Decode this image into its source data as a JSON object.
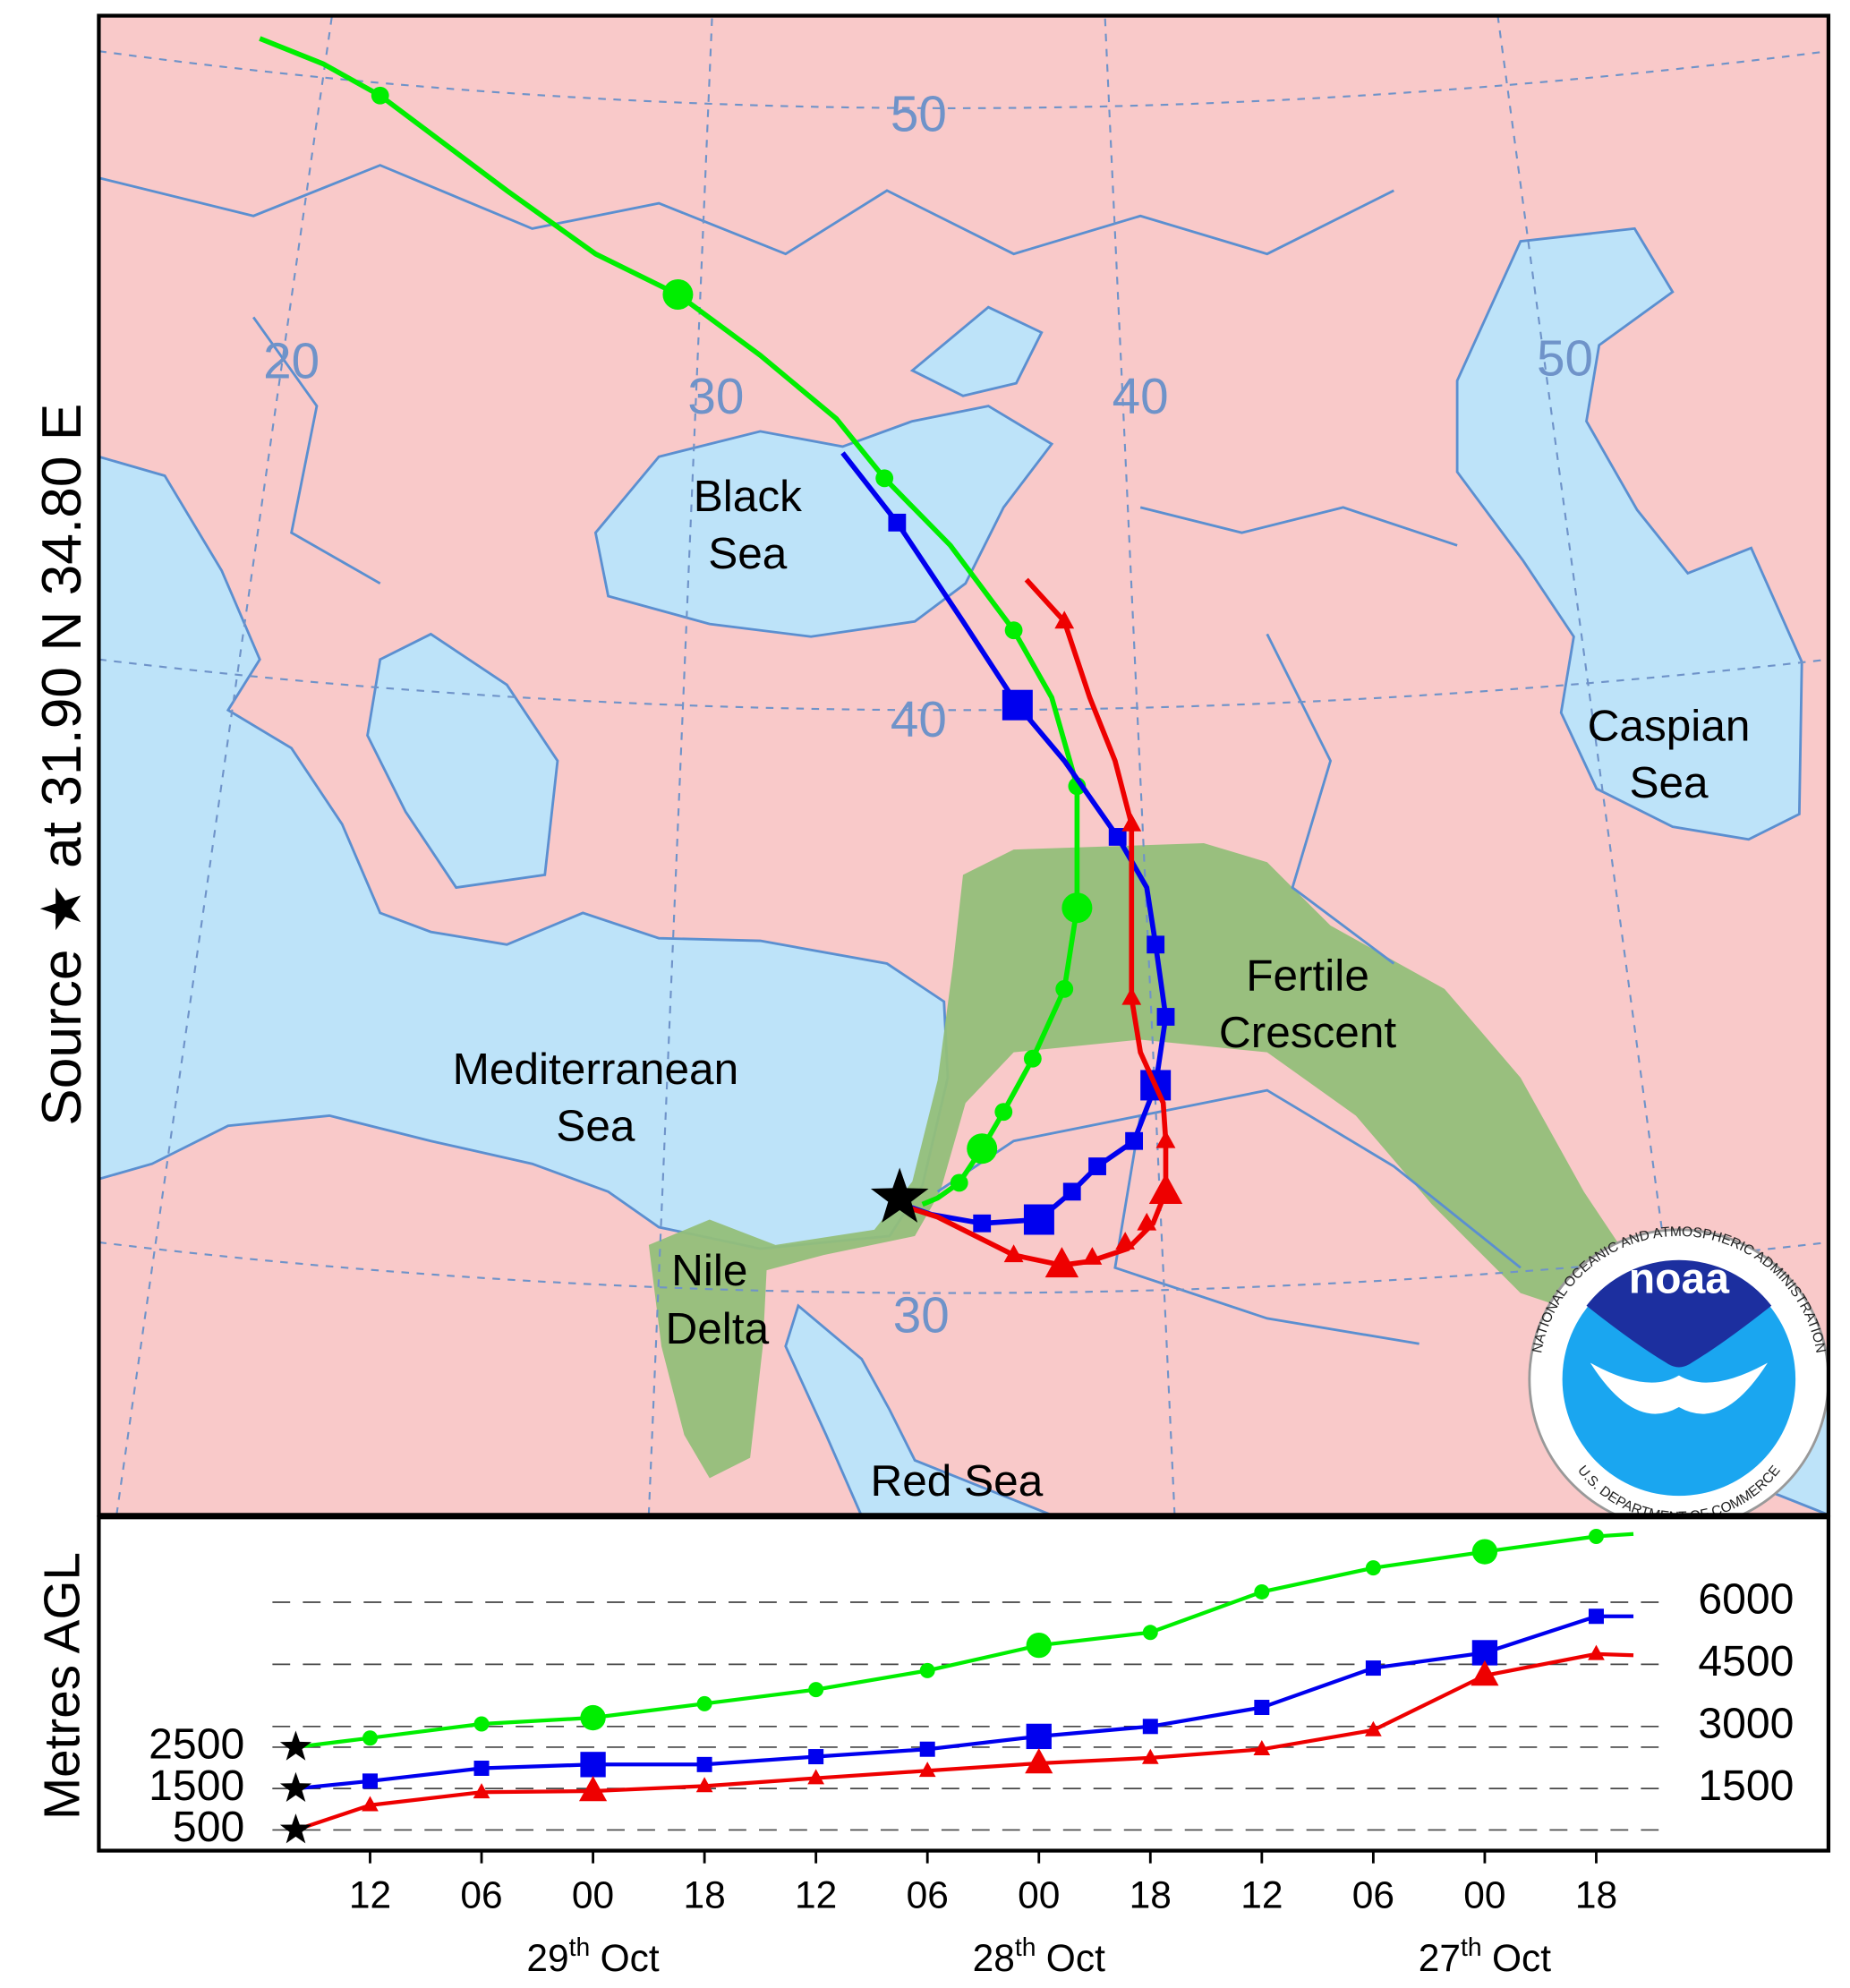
{
  "map": {
    "labels": {
      "black_sea": [
        "Black",
        "Sea"
      ],
      "mediterranean": [
        "Mediterranean",
        "Sea"
      ],
      "caspian": [
        "Caspian",
        "Sea"
      ],
      "fertile": [
        "Fertile",
        "Crescent"
      ],
      "nile": [
        "Nile",
        "Delta"
      ],
      "red_sea": "Red Sea"
    },
    "graticule_labels": [
      "50",
      "20",
      "30",
      "40",
      "50",
      "40",
      "30"
    ]
  },
  "source_label": "Source ★ at 31.90 N 34.80 E",
  "logo": {
    "name": "noaa",
    "ring_top": "NATIONAL OCEANIC AND ATMOSPHERIC ADMINISTRATION",
    "ring_bottom": "U.S. DEPARTMENT OF COMMERCE"
  },
  "chart_data": {
    "type": "line",
    "y_label": "Metres AGL",
    "x": [
      0,
      4,
      10,
      16,
      22,
      28,
      34,
      40,
      46,
      52,
      58,
      64,
      70,
      72
    ],
    "xlim": [
      -10.6,
      82.5
    ],
    "xticks": [
      {
        "value": 4,
        "label": "12"
      },
      {
        "value": 10,
        "label": "06"
      },
      {
        "value": 16,
        "label": "00"
      },
      {
        "value": 22,
        "label": "18"
      },
      {
        "value": 28,
        "label": "12"
      },
      {
        "value": 34,
        "label": "06"
      },
      {
        "value": 40,
        "label": "00"
      },
      {
        "value": 46,
        "label": "18"
      },
      {
        "value": 52,
        "label": "12"
      },
      {
        "value": 58,
        "label": "06"
      },
      {
        "value": 64,
        "label": "00"
      },
      {
        "value": 70,
        "label": "18"
      }
    ],
    "date_labels": [
      {
        "day": "29",
        "suffix": "th",
        "month": "Oct"
      },
      {
        "day": "28",
        "suffix": "th",
        "month": "Oct"
      },
      {
        "day": "27",
        "suffix": "th",
        "month": "Oct"
      }
    ],
    "ylim": [
      0,
      8050
    ],
    "yticks": [
      1500,
      3000,
      4500,
      6000
    ],
    "start_ticks": [
      500,
      1500,
      2500
    ],
    "grid": true,
    "series": [
      {
        "color": "#00ee00",
        "marker": "circle",
        "values": [
          2500,
          2720,
          3060,
          3210,
          3550,
          3890,
          4350,
          4960,
          5270,
          6250,
          6830,
          7220,
          7590,
          7650
        ]
      },
      {
        "color": "#0000ee",
        "marker": "square",
        "values": [
          1500,
          1680,
          1990,
          2080,
          2080,
          2270,
          2450,
          2760,
          3000,
          3460,
          4410,
          4780,
          5660,
          5660
        ]
      },
      {
        "color": "#ee0000",
        "marker": "triangle",
        "values": [
          500,
          1100,
          1410,
          1440,
          1560,
          1750,
          1930,
          2110,
          2240,
          2450,
          2910,
          4230,
          4750,
          4720
        ]
      }
    ]
  }
}
